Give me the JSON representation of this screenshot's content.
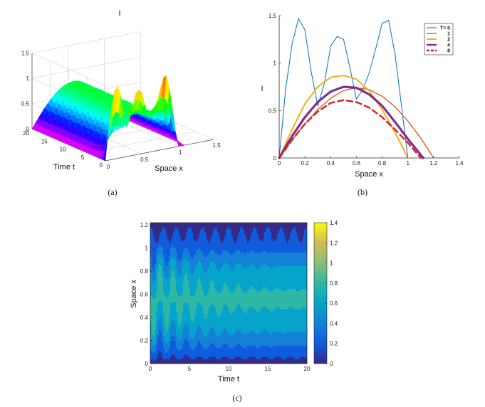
{
  "chart_data": [
    {
      "id": "a",
      "type": "surface3d",
      "title": "I",
      "caption": "(a)",
      "xlabel": "Space x",
      "ylabel": "Time t",
      "zlabel": "",
      "x_ticks": [
        "0",
        "0.5",
        "1",
        "1.5"
      ],
      "t_ticks": [
        "0",
        "5",
        "10",
        "15",
        "20"
      ],
      "z_ticks": [
        "0",
        "0.5",
        "1",
        "1.5"
      ],
      "xlim": [
        0,
        1.5
      ],
      "tlim": [
        0,
        20
      ],
      "zlim": [
        0,
        1.5
      ],
      "initial_profile": {
        "x": [
          0,
          0.05,
          0.1,
          0.15,
          0.2,
          0.25,
          0.3,
          0.35,
          0.4,
          0.45,
          0.5,
          0.55,
          0.6,
          0.65,
          0.7,
          0.75,
          0.8,
          0.85,
          0.9,
          0.95,
          1.0
        ],
        "z": [
          0,
          0.72,
          1.2,
          1.47,
          1.35,
          0.9,
          0.55,
          0.78,
          1.18,
          1.28,
          1.25,
          0.95,
          0.62,
          0.72,
          0.9,
          1.15,
          1.42,
          1.45,
          1.1,
          0.55,
          0
        ]
      },
      "colormap": "hsv"
    },
    {
      "id": "b",
      "type": "line",
      "title": "I",
      "caption": "(b)",
      "xlabel": "Space x",
      "ylabel": "I",
      "xlim": [
        0,
        1.4
      ],
      "ylim": [
        0,
        1.5
      ],
      "x_ticks": [
        "0",
        "0.2",
        "0.4",
        "0.6",
        "0.8",
        "1",
        "1.2",
        "1.4"
      ],
      "y_ticks": [
        "0",
        "0.5",
        "1",
        "1.5"
      ],
      "legend_location": "top-right",
      "series": [
        {
          "name": "T= 0",
          "color": "#0072BD",
          "width": 1,
          "dash": "",
          "x": [
            0,
            0.05,
            0.1,
            0.15,
            0.2,
            0.25,
            0.3,
            0.35,
            0.4,
            0.45,
            0.5,
            0.55,
            0.6,
            0.65,
            0.7,
            0.75,
            0.8,
            0.85,
            0.9,
            0.95,
            1.0
          ],
          "y": [
            0,
            0.72,
            1.2,
            1.47,
            1.35,
            0.9,
            0.55,
            0.78,
            1.18,
            1.28,
            1.25,
            0.95,
            0.62,
            0.72,
            0.9,
            1.15,
            1.42,
            1.45,
            1.1,
            0.55,
            0
          ]
        },
        {
          "name": "1",
          "color": "#D95319",
          "width": 1.3,
          "dash": "",
          "x": [
            0,
            0.1,
            0.2,
            0.3,
            0.4,
            0.5,
            0.6,
            0.7,
            0.8,
            0.9,
            1.0,
            1.1,
            1.2
          ],
          "y": [
            0,
            0.19,
            0.36,
            0.51,
            0.63,
            0.71,
            0.74,
            0.72,
            0.65,
            0.54,
            0.39,
            0.21,
            0
          ]
        },
        {
          "name": "2",
          "color": "#EDB120",
          "width": 2,
          "dash": "",
          "x": [
            0,
            0.1,
            0.2,
            0.3,
            0.4,
            0.5,
            0.6,
            0.7,
            0.8,
            0.9,
            1.0
          ],
          "y": [
            0,
            0.3,
            0.57,
            0.75,
            0.85,
            0.87,
            0.83,
            0.71,
            0.51,
            0.27,
            0
          ]
        },
        {
          "name": "4",
          "color": "#7E2F8E",
          "width": 3.2,
          "dash": "",
          "x": [
            0,
            0.1,
            0.2,
            0.3,
            0.4,
            0.5,
            0.6,
            0.7,
            0.8,
            0.9,
            1.0,
            1.12
          ],
          "y": [
            0,
            0.23,
            0.43,
            0.59,
            0.7,
            0.75,
            0.74,
            0.67,
            0.55,
            0.38,
            0.2,
            0
          ]
        },
        {
          "name": "8",
          "color": "#E31A1C",
          "width": 2.4,
          "dash": "8,5",
          "x": [
            0,
            0.1,
            0.2,
            0.3,
            0.4,
            0.5,
            0.6,
            0.7,
            0.8,
            0.9,
            1.0,
            1.1
          ],
          "y": [
            0,
            0.19,
            0.36,
            0.49,
            0.58,
            0.61,
            0.59,
            0.53,
            0.43,
            0.3,
            0.16,
            0
          ]
        }
      ]
    },
    {
      "id": "c",
      "type": "contour",
      "caption": "(c)",
      "xlabel": "Time t",
      "ylabel": "Space x",
      "xlim": [
        0,
        20
      ],
      "ylim": [
        0,
        1.22
      ],
      "x_ticks": [
        "0",
        "5",
        "10",
        "15",
        "20"
      ],
      "y_ticks": [
        "0",
        "0.2",
        "0.4",
        "0.6",
        "0.8",
        "1",
        "1.2"
      ],
      "colorbar_range": [
        0,
        1.4
      ],
      "colorbar_ticks": [
        "0",
        "0.2",
        "0.4",
        "0.6",
        "0.8",
        "1",
        "1.2",
        "1.4"
      ],
      "colormap": "parula",
      "levels": [
        0.1,
        0.25,
        0.4,
        0.55,
        0.7,
        0.85,
        1.0,
        1.15
      ],
      "oscillation_peaks": 12
    }
  ],
  "colors": {
    "axis": "#262626",
    "grid": "#d9d9d9"
  }
}
